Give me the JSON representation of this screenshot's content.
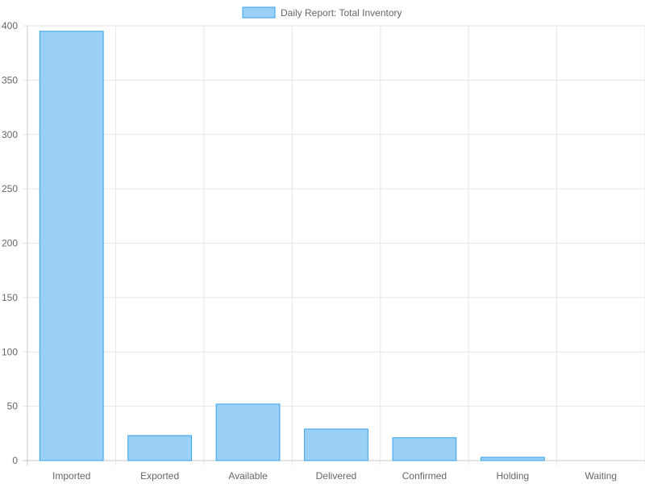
{
  "chart_data": {
    "type": "bar",
    "legend": {
      "label": "Daily Report: Total Inventory",
      "placement": "top-center"
    },
    "categories": [
      "Imported",
      "Exported",
      "Available",
      "Delivered",
      "Confirmed",
      "Holding",
      "Waiting"
    ],
    "series": [
      {
        "name": "Daily Report: Total Inventory",
        "values": [
          395,
          23,
          52,
          29,
          21,
          3,
          0
        ]
      }
    ],
    "ylim": [
      0,
      400
    ],
    "yticks": [
      0,
      50,
      100,
      150,
      200,
      250,
      300,
      350,
      400
    ],
    "grid": true,
    "colors": {
      "bar_fill": "#9ad0f5",
      "bar_border": "#36a2eb",
      "grid": "#e6e6e6",
      "axis": "#c8c8c8",
      "text": "#666666"
    }
  }
}
